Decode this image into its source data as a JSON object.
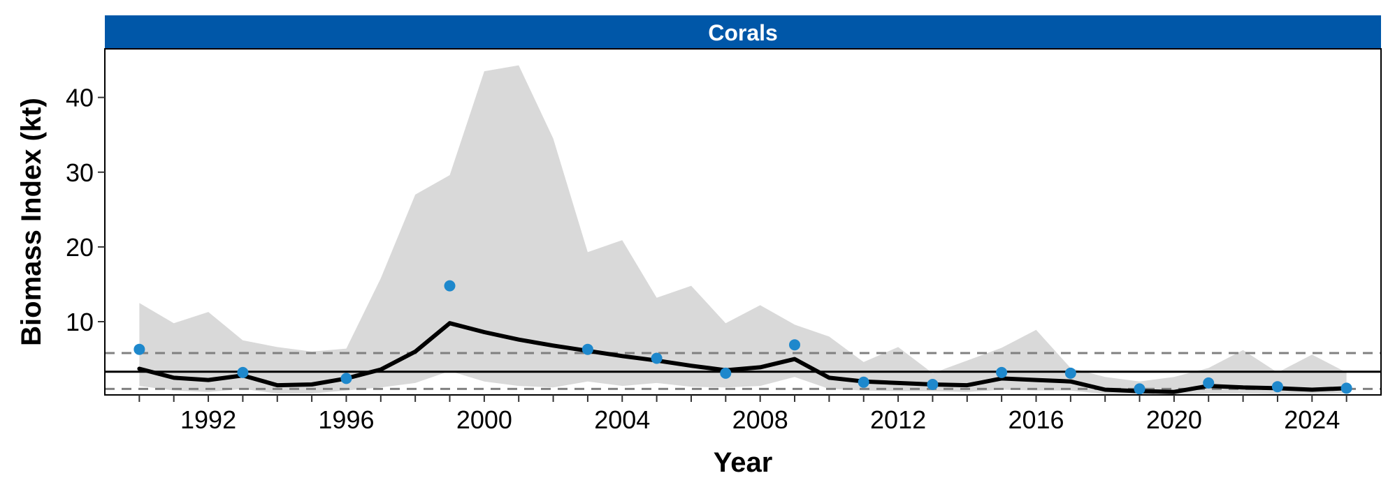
{
  "chart_data": {
    "type": "line",
    "title": "Corals",
    "xlabel": "Year",
    "ylabel": "Biomass Index (kt)",
    "xlim": [
      1989,
      2026
    ],
    "ylim": [
      0.2,
      46.5
    ],
    "x_ticks": [
      "1992",
      "1996",
      "2000",
      "2004",
      "2008",
      "2012",
      "2016",
      "2020",
      "2024"
    ],
    "y_ticks": [
      "10",
      "20",
      "30",
      "40"
    ],
    "grid": false,
    "legend": "none",
    "colors": {
      "strip": "#0057A8",
      "band": "#D9D9D9",
      "line": "#000000",
      "points": "#1E88CC",
      "reference": "#000000",
      "dashed": "#808080"
    },
    "reference_lines": {
      "mean": 3.3,
      "upper": 5.8,
      "lower": 1.0
    },
    "series": [
      {
        "type": "line",
        "x": [
          1990,
          1991,
          1992,
          1993,
          1994,
          1995,
          1996,
          1997,
          1998,
          1999,
          2000,
          2001,
          2002,
          2003,
          2004,
          2005,
          2006,
          2007,
          2008,
          2009,
          2010,
          2011,
          2012,
          2013,
          2014,
          2015,
          2016,
          2017,
          2018,
          2019,
          2020,
          2021,
          2022,
          2023,
          2024,
          2025
        ],
        "y": [
          3.7,
          2.5,
          2.2,
          2.8,
          1.5,
          1.6,
          2.4,
          3.6,
          6.0,
          9.8,
          8.6,
          7.6,
          6.8,
          6.1,
          5.4,
          4.8,
          4.1,
          3.5,
          3.9,
          5.0,
          2.5,
          2.0,
          1.8,
          1.6,
          1.5,
          2.4,
          2.2,
          2.0,
          0.9,
          0.7,
          0.6,
          1.4,
          1.2,
          1.1,
          0.9,
          1.1
        ]
      },
      {
        "type": "band",
        "x": [
          1990,
          1991,
          1992,
          1993,
          1994,
          1995,
          1996,
          1997,
          1998,
          1999,
          2000,
          2001,
          2002,
          2003,
          2004,
          2005,
          2006,
          2007,
          2008,
          2009,
          2010,
          2011,
          2012,
          2013,
          2014,
          2015,
          2016,
          2017,
          2018,
          2019,
          2020,
          2021,
          2022,
          2023,
          2024,
          2025
        ],
        "lower": [
          1.4,
          0.8,
          0.6,
          1.0,
          0.4,
          0.4,
          0.8,
          1.2,
          1.8,
          3.4,
          2.0,
          1.4,
          1.2,
          2.0,
          1.4,
          1.8,
          1.3,
          1.2,
          1.4,
          2.6,
          1.0,
          0.8,
          0.7,
          0.7,
          0.6,
          0.9,
          0.8,
          0.8,
          0.3,
          0.2,
          0.2,
          0.4,
          0.4,
          0.3,
          0.3,
          0.4
        ],
        "upper": [
          12.5,
          9.8,
          11.3,
          7.5,
          6.6,
          6.0,
          6.4,
          15.8,
          27.0,
          29.6,
          43.5,
          44.3,
          34.5,
          19.3,
          20.9,
          13.2,
          14.8,
          9.8,
          12.2,
          9.6,
          8.0,
          4.6,
          6.6,
          3.1,
          4.8,
          6.5,
          8.9,
          3.8,
          2.6,
          2.0,
          2.6,
          3.8,
          6.2,
          3.2,
          5.6,
          3.2
        ]
      },
      {
        "type": "scatter",
        "x": [
          1990,
          1993,
          1996,
          1999,
          2003,
          2005,
          2007,
          2009,
          2011,
          2013,
          2015,
          2017,
          2019,
          2021,
          2023,
          2025
        ],
        "y": [
          6.3,
          3.2,
          2.4,
          14.8,
          6.3,
          5.1,
          3.1,
          6.9,
          1.9,
          1.6,
          3.2,
          3.1,
          1.0,
          1.8,
          1.3,
          1.1
        ]
      }
    ]
  }
}
